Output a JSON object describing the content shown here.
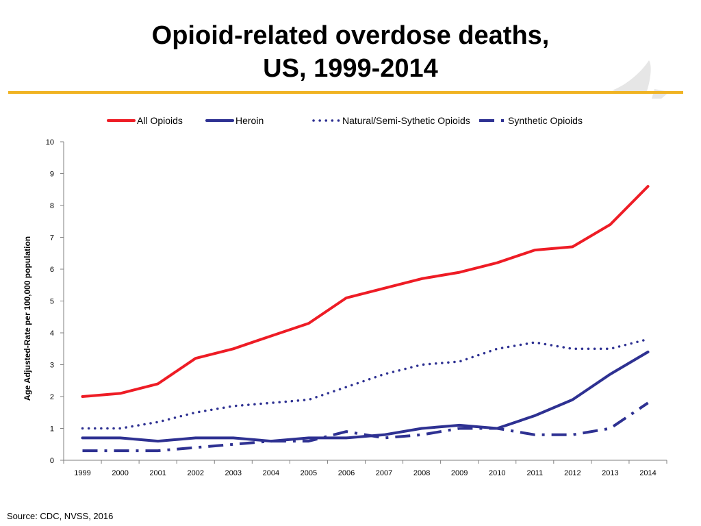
{
  "slide": {
    "title_line1": "Opioid-related overdose deaths,",
    "title_line2": "US, 1999-2014",
    "source": "Source: CDC, NVSS, 2016",
    "accent_color": "#f0b323"
  },
  "chart_data": {
    "type": "line",
    "title": "Opioid-related overdose deaths, US, 1999-2014",
    "xlabel": "",
    "ylabel": "Age Adjusted-Rate per 100,000 population",
    "categories": [
      "1999",
      "2000",
      "2001",
      "2002",
      "2003",
      "2004",
      "2005",
      "2006",
      "2007",
      "2008",
      "2009",
      "2010",
      "2011",
      "2012",
      "2013",
      "2014"
    ],
    "ylim": [
      0,
      10
    ],
    "yticks": [
      0,
      1,
      2,
      3,
      4,
      5,
      6,
      7,
      8,
      9,
      10
    ],
    "legend_position": "top",
    "grid": false,
    "series": [
      {
        "name": "All Opioids",
        "color": "#ee1c25",
        "style": "solid",
        "values": [
          2.0,
          2.1,
          2.4,
          3.2,
          3.5,
          3.9,
          4.3,
          5.1,
          5.4,
          5.7,
          5.9,
          6.2,
          6.6,
          6.7,
          7.4,
          8.6
        ]
      },
      {
        "name": "Heroin",
        "color": "#2e3192",
        "style": "solid",
        "values": [
          0.7,
          0.7,
          0.6,
          0.7,
          0.7,
          0.6,
          0.7,
          0.7,
          0.8,
          1.0,
          1.1,
          1.0,
          1.4,
          1.9,
          2.7,
          3.4
        ]
      },
      {
        "name": "Natural/Semi-Sythetic Opioids",
        "color": "#2e3192",
        "style": "dotted",
        "values": [
          1.0,
          1.0,
          1.2,
          1.5,
          1.7,
          1.8,
          1.9,
          2.3,
          2.7,
          3.0,
          3.1,
          3.5,
          3.7,
          3.5,
          3.5,
          3.8
        ]
      },
      {
        "name": "Synthetic Opioids",
        "color": "#2e3192",
        "style": "dashdot",
        "values": [
          0.3,
          0.3,
          0.3,
          0.4,
          0.5,
          0.6,
          0.6,
          0.9,
          0.7,
          0.8,
          1.0,
          1.0,
          0.8,
          0.8,
          1.0,
          1.8
        ]
      }
    ]
  }
}
